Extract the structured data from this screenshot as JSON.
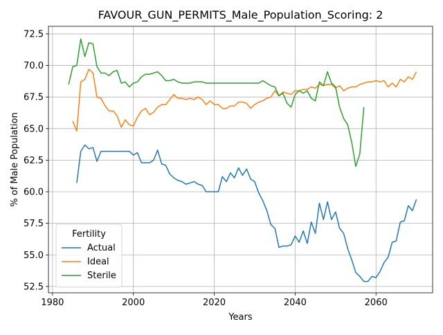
{
  "chart_data": {
    "type": "line",
    "title": "FAVOUR_GUN_PERMITS_Male_Population_Scoring: 2",
    "xlabel": "Years",
    "ylabel": "% of Male Population",
    "xlim": [
      1979,
      2074
    ],
    "ylim": [
      52.0,
      73.1
    ],
    "x_ticks": [
      1980,
      2000,
      2020,
      2040,
      2060
    ],
    "y_ticks": [
      52.5,
      55.0,
      57.5,
      60.0,
      62.5,
      65.0,
      67.5,
      70.0,
      72.5
    ],
    "y_tick_labels": [
      "52.5",
      "55.0",
      "57.5",
      "60.0",
      "62.5",
      "65.0",
      "67.5",
      "70.0",
      "72.5"
    ],
    "grid": true,
    "legend": {
      "title": "Fertility",
      "placement": "lower-left"
    },
    "series": [
      {
        "name": "Actual",
        "color": "#1f77b4",
        "x": [
          1986,
          1987,
          1988,
          1989,
          1990,
          1991,
          1992,
          1993,
          1994,
          1995,
          1996,
          1997,
          1998,
          1999,
          2000,
          2001,
          2002,
          2003,
          2004,
          2005,
          2006,
          2007,
          2008,
          2009,
          2010,
          2011,
          2012,
          2013,
          2014,
          2015,
          2016,
          2017,
          2018,
          2019,
          2020,
          2021,
          2022,
          2023,
          2024,
          2025,
          2026,
          2027,
          2028,
          2029,
          2030,
          2031,
          2032,
          2033,
          2034,
          2035,
          2036,
          2037,
          2038,
          2039,
          2040,
          2041,
          2042,
          2043,
          2044,
          2045,
          2046,
          2047,
          2048,
          2049,
          2050,
          2051,
          2052,
          2053,
          2054,
          2055,
          2056,
          2057,
          2058,
          2059,
          2060,
          2061,
          2062,
          2063,
          2064,
          2065,
          2066,
          2067,
          2068,
          2069,
          2070
        ],
        "values": [
          60.7,
          63.2,
          63.7,
          63.4,
          63.5,
          62.4,
          63.2,
          63.2,
          63.2,
          63.2,
          63.2,
          63.2,
          63.2,
          63.2,
          62.9,
          63.1,
          62.3,
          62.3,
          62.3,
          62.5,
          63.3,
          62.2,
          62.1,
          61.4,
          61.1,
          60.9,
          60.8,
          60.6,
          60.7,
          60.8,
          60.6,
          60.5,
          60.0,
          60.0,
          60.0,
          60.0,
          61.2,
          60.8,
          61.5,
          61.1,
          61.9,
          61.3,
          61.8,
          61.0,
          60.8,
          59.9,
          59.3,
          58.5,
          57.4,
          57.1,
          55.6,
          55.7,
          55.7,
          55.8,
          56.5,
          56.0,
          56.9,
          55.9,
          57.6,
          56.7,
          59.1,
          57.8,
          59.2,
          57.8,
          58.4,
          57.1,
          56.7,
          55.5,
          54.6,
          53.6,
          53.3,
          52.9,
          52.9,
          53.3,
          53.2,
          53.7,
          54.4,
          54.8,
          56.0,
          56.1,
          57.6,
          57.7,
          58.9,
          58.5,
          59.4
        ]
      },
      {
        "name": "Ideal",
        "color": "#ff7f0e",
        "x": [
          1985,
          1986,
          1987,
          1988,
          1989,
          1990,
          1991,
          1992,
          1993,
          1994,
          1995,
          1996,
          1997,
          1998,
          1999,
          2000,
          2001,
          2002,
          2003,
          2004,
          2005,
          2006,
          2007,
          2008,
          2009,
          2010,
          2011,
          2012,
          2013,
          2014,
          2015,
          2016,
          2017,
          2018,
          2019,
          2020,
          2021,
          2022,
          2023,
          2024,
          2025,
          2026,
          2027,
          2028,
          2029,
          2030,
          2031,
          2032,
          2033,
          2034,
          2035,
          2036,
          2037,
          2038,
          2039,
          2040,
          2041,
          2042,
          2043,
          2044,
          2045,
          2046,
          2047,
          2048,
          2049,
          2050,
          2051,
          2052,
          2053,
          2054,
          2055,
          2056,
          2057,
          2058,
          2059,
          2060,
          2061,
          2062,
          2063,
          2064,
          2065,
          2066,
          2067,
          2068,
          2069,
          2070
        ],
        "values": [
          65.6,
          64.8,
          68.7,
          68.9,
          69.7,
          69.4,
          67.5,
          67.4,
          66.8,
          66.4,
          66.4,
          66.0,
          65.1,
          65.7,
          65.3,
          65.2,
          65.9,
          66.4,
          66.6,
          66.1,
          66.3,
          66.7,
          66.9,
          66.9,
          67.3,
          67.7,
          67.4,
          67.4,
          67.3,
          67.4,
          67.3,
          67.5,
          67.3,
          66.9,
          67.2,
          66.9,
          66.9,
          66.6,
          66.6,
          66.8,
          66.8,
          67.1,
          67.1,
          67.0,
          66.6,
          66.9,
          67.1,
          67.2,
          67.4,
          67.5,
          68.0,
          67.6,
          67.9,
          67.8,
          67.7,
          68.0,
          68.0,
          68.1,
          68.1,
          68.3,
          68.2,
          68.5,
          68.4,
          68.5,
          68.5,
          68.2,
          68.4,
          68.0,
          68.2,
          68.3,
          68.3,
          68.5,
          68.6,
          68.7,
          68.7,
          68.8,
          68.7,
          68.8,
          68.3,
          68.6,
          68.3,
          68.9,
          68.7,
          69.1,
          68.9,
          69.5
        ]
      },
      {
        "name": "Sterile",
        "color": "#2ca02c",
        "x": [
          1984,
          1985,
          1986,
          1987,
          1988,
          1989,
          1990,
          1991,
          1992,
          1993,
          1994,
          1995,
          1996,
          1997,
          1998,
          1999,
          2000,
          2001,
          2002,
          2003,
          2004,
          2005,
          2006,
          2007,
          2008,
          2009,
          2010,
          2011,
          2012,
          2013,
          2014,
          2015,
          2016,
          2017,
          2018,
          2019,
          2020,
          2021,
          2022,
          2023,
          2024,
          2025,
          2026,
          2027,
          2028,
          2029,
          2030,
          2031,
          2032,
          2033,
          2034,
          2035,
          2036,
          2037,
          2038,
          2039,
          2040,
          2041,
          2042,
          2043,
          2044,
          2045,
          2046,
          2047,
          2048,
          2049,
          2050,
          2051,
          2052,
          2053,
          2054,
          2055,
          2056,
          2057
        ],
        "values": [
          68.5,
          69.9,
          70.0,
          72.1,
          70.7,
          71.8,
          71.7,
          69.9,
          69.4,
          69.4,
          69.2,
          69.5,
          69.6,
          68.6,
          68.7,
          68.3,
          68.6,
          68.7,
          69.1,
          69.3,
          69.3,
          69.4,
          69.5,
          69.2,
          68.8,
          68.8,
          68.9,
          68.7,
          68.6,
          68.6,
          68.6,
          68.7,
          68.7,
          68.7,
          68.6,
          68.6,
          68.6,
          68.6,
          68.6,
          68.6,
          68.6,
          68.6,
          68.6,
          68.6,
          68.6,
          68.6,
          68.6,
          68.6,
          68.8,
          68.6,
          68.4,
          68.3,
          67.6,
          67.8,
          67.0,
          66.7,
          67.7,
          68.0,
          67.8,
          68.0,
          67.4,
          67.2,
          68.7,
          68.4,
          69.5,
          68.6,
          68.3,
          66.7,
          65.8,
          65.3,
          63.9,
          62.0,
          63.0,
          66.7
        ]
      }
    ]
  }
}
